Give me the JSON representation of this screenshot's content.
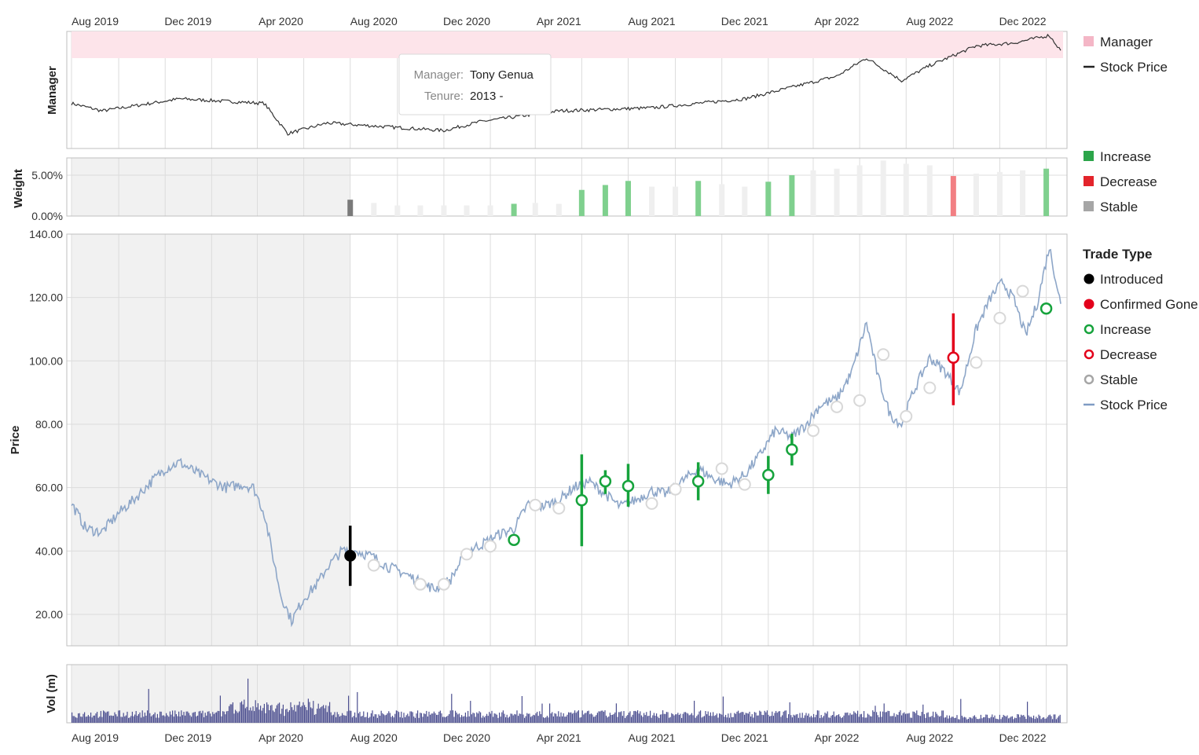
{
  "axis": {
    "x_ticks": [
      "Aug 2019",
      "Dec 2019",
      "Apr 2020",
      "Aug 2020",
      "Dec 2020",
      "Apr 2021",
      "Aug 2021",
      "Dec 2021",
      "Apr 2022",
      "Aug 2022",
      "Dec 2022"
    ]
  },
  "panels": {
    "manager": {
      "ylabel": "Manager"
    },
    "weight": {
      "ylabel": "Weight",
      "ticks": [
        "5.00%",
        "0.00%"
      ]
    },
    "price": {
      "ylabel": "Price",
      "ticks": [
        "140.00",
        "120.00",
        "100.00",
        "80.00",
        "60.00",
        "40.00",
        "20.00"
      ]
    },
    "volume": {
      "ylabel": "Vol (m)"
    }
  },
  "tooltip": {
    "manager_label": "Manager:",
    "manager_value": "Tony Genua",
    "tenure_label": "Tenure:",
    "tenure_value": "2013 -"
  },
  "legends": {
    "manager": [
      {
        "label": "Manager",
        "color": "#f4b6c6",
        "shape": "square"
      },
      {
        "label": "Stock Price",
        "color": "#222222",
        "shape": "line"
      }
    ],
    "weight": [
      {
        "label": "Increase",
        "color": "#2ca54a",
        "shape": "square"
      },
      {
        "label": "Decrease",
        "color": "#e3242b",
        "shape": "square"
      },
      {
        "label": "Stable",
        "color": "#a6a6a6",
        "shape": "square"
      }
    ],
    "price_title": "Trade Type",
    "price": [
      {
        "label": "Introduced",
        "color": "#000000",
        "shape": "dot"
      },
      {
        "label": "Confirmed Gone",
        "color": "#e3001b",
        "shape": "dot"
      },
      {
        "label": "Increase",
        "color": "#16a33c",
        "shape": "ring"
      },
      {
        "label": "Decrease",
        "color": "#e3001b",
        "shape": "ring"
      },
      {
        "label": "Stable",
        "color": "#a6a6a6",
        "shape": "ring"
      },
      {
        "label": "Stock Price",
        "color": "#7f9cc4",
        "shape": "line"
      }
    ]
  },
  "colors": {
    "manager_band": "#fde4ea",
    "shade": "#f1f1f1",
    "grid": "#dcdcdc",
    "price_line": "#8da6c8",
    "manager_line": "#333333",
    "volume_bar": "#4b4e8f",
    "increase": "#16a33c",
    "decrease": "#e3001b",
    "stable_bar": "#efefef",
    "introduced": "#000000"
  },
  "chart_data": {
    "type": "line",
    "x_range": [
      "2019-07-01",
      "2023-01-20"
    ],
    "ylim": [
      10,
      140
    ],
    "shaded_until": "2020-07-01",
    "manager_period": {
      "name": "Tony Genua",
      "tenure": "2013 -"
    },
    "price_series": [
      [
        "2019-07-01",
        55
      ],
      [
        "2019-07-20",
        47
      ],
      [
        "2019-08-10",
        46
      ],
      [
        "2019-09-01",
        52
      ],
      [
        "2019-09-20",
        56
      ],
      [
        "2019-10-10",
        61
      ],
      [
        "2019-11-01",
        66
      ],
      [
        "2019-11-20",
        68
      ],
      [
        "2019-12-10",
        65
      ],
      [
        "2020-01-01",
        62
      ],
      [
        "2020-01-20",
        60
      ],
      [
        "2020-02-10",
        61
      ],
      [
        "2020-02-25",
        60
      ],
      [
        "2020-03-10",
        52
      ],
      [
        "2020-03-20",
        40
      ],
      [
        "2020-04-01",
        26
      ],
      [
        "2020-04-15",
        18
      ],
      [
        "2020-05-01",
        25
      ],
      [
        "2020-05-20",
        30
      ],
      [
        "2020-06-01",
        35
      ],
      [
        "2020-06-20",
        40
      ],
      [
        "2020-07-10",
        40
      ],
      [
        "2020-08-01",
        38
      ],
      [
        "2020-08-20",
        35
      ],
      [
        "2020-09-10",
        33
      ],
      [
        "2020-10-01",
        30
      ],
      [
        "2020-10-20",
        28
      ],
      [
        "2020-11-10",
        31
      ],
      [
        "2020-12-01",
        40
      ],
      [
        "2020-12-20",
        42
      ],
      [
        "2021-01-10",
        45
      ],
      [
        "2021-02-01",
        47
      ],
      [
        "2021-02-20",
        55
      ],
      [
        "2021-03-10",
        54
      ],
      [
        "2021-04-01",
        56
      ],
      [
        "2021-04-20",
        60
      ],
      [
        "2021-05-10",
        62
      ],
      [
        "2021-06-01",
        58
      ],
      [
        "2021-06-20",
        54
      ],
      [
        "2021-07-10",
        56
      ],
      [
        "2021-08-01",
        59
      ],
      [
        "2021-08-20",
        58
      ],
      [
        "2021-09-10",
        62
      ],
      [
        "2021-10-01",
        66
      ],
      [
        "2021-10-20",
        63
      ],
      [
        "2021-11-10",
        61
      ],
      [
        "2021-12-01",
        64
      ],
      [
        "2021-12-20",
        70
      ],
      [
        "2022-01-10",
        78
      ],
      [
        "2022-02-01",
        76
      ],
      [
        "2022-02-20",
        80
      ],
      [
        "2022-03-10",
        86
      ],
      [
        "2022-04-01",
        88
      ],
      [
        "2022-04-20",
        96
      ],
      [
        "2022-05-10",
        112
      ],
      [
        "2022-05-25",
        95
      ],
      [
        "2022-06-10",
        83
      ],
      [
        "2022-06-25",
        80
      ],
      [
        "2022-07-10",
        90
      ],
      [
        "2022-08-01",
        101
      ],
      [
        "2022-08-20",
        97
      ],
      [
        "2022-09-10",
        90
      ],
      [
        "2022-10-01",
        110
      ],
      [
        "2022-10-20",
        120
      ],
      [
        "2022-11-05",
        125
      ],
      [
        "2022-11-20",
        119
      ],
      [
        "2022-12-05",
        108
      ],
      [
        "2022-12-20",
        118
      ],
      [
        "2023-01-05",
        136
      ],
      [
        "2023-01-20",
        118
      ]
    ],
    "manager_series": [
      [
        "2019-07-01",
        60
      ],
      [
        "2019-08-10",
        55
      ],
      [
        "2019-11-20",
        63
      ],
      [
        "2020-03-10",
        60
      ],
      [
        "2020-04-10",
        40
      ],
      [
        "2020-06-01",
        47
      ],
      [
        "2020-08-01",
        45
      ],
      [
        "2020-11-01",
        42
      ],
      [
        "2020-12-20",
        48
      ],
      [
        "2021-04-01",
        55
      ],
      [
        "2021-08-01",
        57
      ],
      [
        "2021-12-01",
        63
      ],
      [
        "2022-04-01",
        78
      ],
      [
        "2022-05-10",
        90
      ],
      [
        "2022-06-25",
        75
      ],
      [
        "2022-08-01",
        85
      ],
      [
        "2022-10-01",
        98
      ],
      [
        "2022-11-20",
        100
      ],
      [
        "2023-01-05",
        105
      ],
      [
        "2023-01-20",
        95
      ]
    ],
    "trades": [
      {
        "date": "2020-07-01",
        "price": 38.5,
        "type": "Introduced",
        "low": 29,
        "high": 48
      },
      {
        "date": "2020-08-01",
        "price": 35.5,
        "type": "Stable"
      },
      {
        "date": "2020-10-01",
        "price": 29.5,
        "type": "Stable"
      },
      {
        "date": "2020-11-01",
        "price": 29.5,
        "type": "Stable"
      },
      {
        "date": "2020-12-01",
        "price": 39,
        "type": "Stable"
      },
      {
        "date": "2021-01-01",
        "price": 41.5,
        "type": "Stable"
      },
      {
        "date": "2021-02-01",
        "price": 43.5,
        "type": "Increase",
        "low": 43.5,
        "high": 43.5
      },
      {
        "date": "2021-03-01",
        "price": 54.5,
        "type": "Stable"
      },
      {
        "date": "2021-04-01",
        "price": 53.5,
        "type": "Stable"
      },
      {
        "date": "2021-05-01",
        "price": 56,
        "type": "Increase",
        "low": 41.5,
        "high": 70.5
      },
      {
        "date": "2021-06-01",
        "price": 62,
        "type": "Increase",
        "low": 58,
        "high": 65.5
      },
      {
        "date": "2021-07-01",
        "price": 60.5,
        "type": "Increase",
        "low": 54,
        "high": 67.5
      },
      {
        "date": "2021-08-01",
        "price": 55,
        "type": "Stable"
      },
      {
        "date": "2021-09-01",
        "price": 59.5,
        "type": "Stable"
      },
      {
        "date": "2021-10-01",
        "price": 62,
        "type": "Increase",
        "low": 56,
        "high": 68
      },
      {
        "date": "2021-11-01",
        "price": 66,
        "type": "Stable"
      },
      {
        "date": "2021-12-01",
        "price": 61,
        "type": "Stable"
      },
      {
        "date": "2022-01-01",
        "price": 64,
        "type": "Increase",
        "low": 58,
        "high": 70
      },
      {
        "date": "2022-02-01",
        "price": 72,
        "type": "Increase",
        "low": 67,
        "high": 77
      },
      {
        "date": "2022-03-01",
        "price": 78,
        "type": "Stable"
      },
      {
        "date": "2022-04-01",
        "price": 85.5,
        "type": "Stable"
      },
      {
        "date": "2022-05-01",
        "price": 87.5,
        "type": "Stable"
      },
      {
        "date": "2022-06-01",
        "price": 102,
        "type": "Stable"
      },
      {
        "date": "2022-07-01",
        "price": 82.5,
        "type": "Stable"
      },
      {
        "date": "2022-08-01",
        "price": 91.5,
        "type": "Stable"
      },
      {
        "date": "2022-09-01",
        "price": 101,
        "type": "Decrease",
        "low": 86,
        "high": 115
      },
      {
        "date": "2022-10-01",
        "price": 99.5,
        "type": "Stable"
      },
      {
        "date": "2022-11-01",
        "price": 113.5,
        "type": "Stable"
      },
      {
        "date": "2022-12-01",
        "price": 122,
        "type": "Stable"
      },
      {
        "date": "2023-01-01",
        "price": 116.5,
        "type": "Increase",
        "low": 116.5,
        "high": 116.5
      }
    ],
    "weights": [
      {
        "date": "2020-07-01",
        "weight": 2.0,
        "type": "Stable-dark"
      },
      {
        "date": "2020-08-01",
        "weight": 1.6,
        "type": "Stable"
      },
      {
        "date": "2020-09-01",
        "weight": 1.3,
        "type": "Stable"
      },
      {
        "date": "2020-10-01",
        "weight": 1.3,
        "type": "Stable"
      },
      {
        "date": "2020-11-01",
        "weight": 1.3,
        "type": "Stable"
      },
      {
        "date": "2020-12-01",
        "weight": 1.3,
        "type": "Stable"
      },
      {
        "date": "2021-01-01",
        "weight": 1.3,
        "type": "Stable"
      },
      {
        "date": "2021-02-01",
        "weight": 1.5,
        "type": "Increase"
      },
      {
        "date": "2021-03-01",
        "weight": 1.6,
        "type": "Stable"
      },
      {
        "date": "2021-04-01",
        "weight": 1.5,
        "type": "Stable"
      },
      {
        "date": "2021-05-01",
        "weight": 3.2,
        "type": "Increase"
      },
      {
        "date": "2021-06-01",
        "weight": 3.8,
        "type": "Increase"
      },
      {
        "date": "2021-07-01",
        "weight": 4.3,
        "type": "Increase"
      },
      {
        "date": "2021-08-01",
        "weight": 3.6,
        "type": "Stable"
      },
      {
        "date": "2021-09-01",
        "weight": 3.6,
        "type": "Stable"
      },
      {
        "date": "2021-10-01",
        "weight": 4.3,
        "type": "Increase"
      },
      {
        "date": "2021-11-01",
        "weight": 3.9,
        "type": "Stable"
      },
      {
        "date": "2021-12-01",
        "weight": 3.6,
        "type": "Stable"
      },
      {
        "date": "2022-01-01",
        "weight": 4.2,
        "type": "Increase"
      },
      {
        "date": "2022-02-01",
        "weight": 5.0,
        "type": "Increase"
      },
      {
        "date": "2022-03-01",
        "weight": 5.6,
        "type": "Stable"
      },
      {
        "date": "2022-04-01",
        "weight": 5.8,
        "type": "Stable"
      },
      {
        "date": "2022-05-01",
        "weight": 6.2,
        "type": "Stable"
      },
      {
        "date": "2022-06-01",
        "weight": 6.8,
        "type": "Stable"
      },
      {
        "date": "2022-07-01",
        "weight": 6.4,
        "type": "Stable"
      },
      {
        "date": "2022-08-01",
        "weight": 6.2,
        "type": "Stable"
      },
      {
        "date": "2022-09-01",
        "weight": 4.9,
        "type": "Decrease"
      },
      {
        "date": "2022-10-01",
        "weight": 5.2,
        "type": "Stable"
      },
      {
        "date": "2022-11-01",
        "weight": 5.4,
        "type": "Stable"
      },
      {
        "date": "2022-12-01",
        "weight": 5.6,
        "type": "Stable"
      },
      {
        "date": "2023-01-01",
        "weight": 5.8,
        "type": "Increase"
      }
    ]
  }
}
